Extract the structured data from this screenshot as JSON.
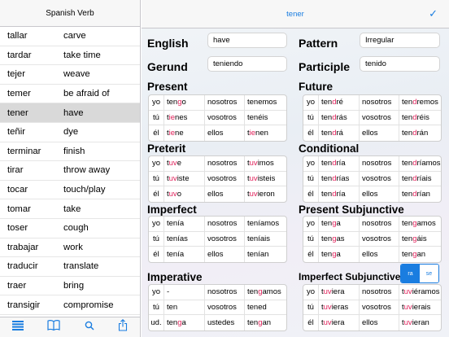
{
  "sidebar": {
    "title": "Spanish Verb",
    "verbs": [
      {
        "es": "tallar",
        "en": "carve"
      },
      {
        "es": "tardar",
        "en": "take time"
      },
      {
        "es": "tejer",
        "en": "weave"
      },
      {
        "es": "temer",
        "en": "be afraid of"
      },
      {
        "es": "tener",
        "en": "have"
      },
      {
        "es": "teñir",
        "en": "dye"
      },
      {
        "es": "terminar",
        "en": "finish"
      },
      {
        "es": "tirar",
        "en": "throw away"
      },
      {
        "es": "tocar",
        "en": "touch/play"
      },
      {
        "es": "tomar",
        "en": "take"
      },
      {
        "es": "toser",
        "en": "cough"
      },
      {
        "es": "trabajar",
        "en": "work"
      },
      {
        "es": "traducir",
        "en": "translate"
      },
      {
        "es": "traer",
        "en": "bring"
      },
      {
        "es": "transigir",
        "en": "compromise"
      }
    ],
    "selected_index": 4,
    "toolbar_icons": [
      "list-icon",
      "book-icon",
      "search-icon",
      "share-icon"
    ]
  },
  "header": {
    "title": "tener",
    "done_symbol": "✓"
  },
  "labels": {
    "english": "English",
    "gerund": "Gerund",
    "pattern": "Pattern",
    "participle": "Participle",
    "present": "Present",
    "future": "Future",
    "preterit": "Preterit",
    "conditional": "Conditional",
    "imperfect": "Imperfect",
    "present_subjunctive": "Present Subjunctive",
    "imperative": "Imperative",
    "imperfect_subjunctive": "Imperfect Subjunctive"
  },
  "fields": {
    "english": "have",
    "gerund": "teniendo",
    "pattern": "Irregular",
    "participle": "tenido"
  },
  "segment": [
    "ra",
    "se"
  ],
  "tables": {
    "present": [
      {
        "p1": "yo",
        "f1": [
          "ten",
          "g",
          "o"
        ],
        "p2": "nosotros",
        "f2": [
          "tenemos",
          "",
          ""
        ]
      },
      {
        "p1": "tú",
        "f1": [
          "t",
          "ie",
          "nes"
        ],
        "p2": "vosotros",
        "f2": [
          "tenéis",
          "",
          ""
        ]
      },
      {
        "p1": "él",
        "f1": [
          "t",
          "ie",
          "ne"
        ],
        "p2": "ellos",
        "f2": [
          "t",
          "ie",
          "nen"
        ]
      }
    ],
    "future": [
      {
        "p1": "yo",
        "f1": [
          "ten",
          "d",
          "ré"
        ],
        "p2": "nosotros",
        "f2": [
          "ten",
          "d",
          "remos"
        ]
      },
      {
        "p1": "tú",
        "f1": [
          "ten",
          "d",
          "rás"
        ],
        "p2": "vosotros",
        "f2": [
          "ten",
          "d",
          "réis"
        ]
      },
      {
        "p1": "él",
        "f1": [
          "ten",
          "d",
          "rá"
        ],
        "p2": "ellos",
        "f2": [
          "ten",
          "d",
          "rán"
        ]
      }
    ],
    "preterit": [
      {
        "p1": "yo",
        "f1": [
          "t",
          "uv",
          "e"
        ],
        "p2": "nosotros",
        "f2": [
          "t",
          "uv",
          "imos"
        ]
      },
      {
        "p1": "tú",
        "f1": [
          "t",
          "uv",
          "iste"
        ],
        "p2": "vosotros",
        "f2": [
          "t",
          "uv",
          "isteis"
        ]
      },
      {
        "p1": "él",
        "f1": [
          "t",
          "uv",
          "o"
        ],
        "p2": "ellos",
        "f2": [
          "t",
          "uv",
          "ieron"
        ]
      }
    ],
    "conditional": [
      {
        "p1": "yo",
        "f1": [
          "ten",
          "d",
          "ría"
        ],
        "p2": "nosotros",
        "f2": [
          "ten",
          "d",
          "ríamos"
        ]
      },
      {
        "p1": "tú",
        "f1": [
          "ten",
          "d",
          "rías"
        ],
        "p2": "vosotros",
        "f2": [
          "ten",
          "d",
          "ríais"
        ]
      },
      {
        "p1": "él",
        "f1": [
          "ten",
          "d",
          "ría"
        ],
        "p2": "ellos",
        "f2": [
          "ten",
          "d",
          "rían"
        ]
      }
    ],
    "imperfect": [
      {
        "p1": "yo",
        "f1": [
          "tenía",
          "",
          ""
        ],
        "p2": "nosotros",
        "f2": [
          "teníamos",
          "",
          ""
        ]
      },
      {
        "p1": "tú",
        "f1": [
          "tenías",
          "",
          ""
        ],
        "p2": "vosotros",
        "f2": [
          "teníais",
          "",
          ""
        ]
      },
      {
        "p1": "él",
        "f1": [
          "tenía",
          "",
          ""
        ],
        "p2": "ellos",
        "f2": [
          "tenían",
          "",
          ""
        ]
      }
    ],
    "present_subjunctive": [
      {
        "p1": "yo",
        "f1": [
          "ten",
          "g",
          "a"
        ],
        "p2": "nosotros",
        "f2": [
          "ten",
          "g",
          "amos"
        ]
      },
      {
        "p1": "tú",
        "f1": [
          "ten",
          "g",
          "as"
        ],
        "p2": "vosotros",
        "f2": [
          "ten",
          "g",
          "áis"
        ]
      },
      {
        "p1": "él",
        "f1": [
          "ten",
          "g",
          "a"
        ],
        "p2": "ellos",
        "f2": [
          "ten",
          "g",
          "an"
        ]
      }
    ],
    "imperative": [
      {
        "p1": "yo",
        "f1": [
          "-",
          "",
          ""
        ],
        "p2": "nosotros",
        "f2": [
          "ten",
          "g",
          "amos"
        ]
      },
      {
        "p1": "tú",
        "f1": [
          "ten",
          "",
          ""
        ],
        "p2": "vosotros",
        "f2": [
          "tened",
          "",
          ""
        ]
      },
      {
        "p1": "ud.",
        "f1": [
          "ten",
          "g",
          "a"
        ],
        "p2": "ustedes",
        "f2": [
          "ten",
          "g",
          "an"
        ]
      }
    ],
    "imperfect_subjunctive": [
      {
        "p1": "yo",
        "f1": [
          "t",
          "uv",
          "iera"
        ],
        "p2": "nosotros",
        "f2": [
          "t",
          "uv",
          "iéramos"
        ]
      },
      {
        "p1": "tú",
        "f1": [
          "t",
          "uv",
          "ieras"
        ],
        "p2": "vosotros",
        "f2": [
          "t",
          "uv",
          "ierais"
        ]
      },
      {
        "p1": "él",
        "f1": [
          "t",
          "uv",
          "iera"
        ],
        "p2": "ellos",
        "f2": [
          "t",
          "uv",
          "ieran"
        ]
      }
    ]
  },
  "colors": {
    "accent": "#1a7de0",
    "highlight": "#e0205a",
    "selected_row": "#d9d9d9"
  }
}
